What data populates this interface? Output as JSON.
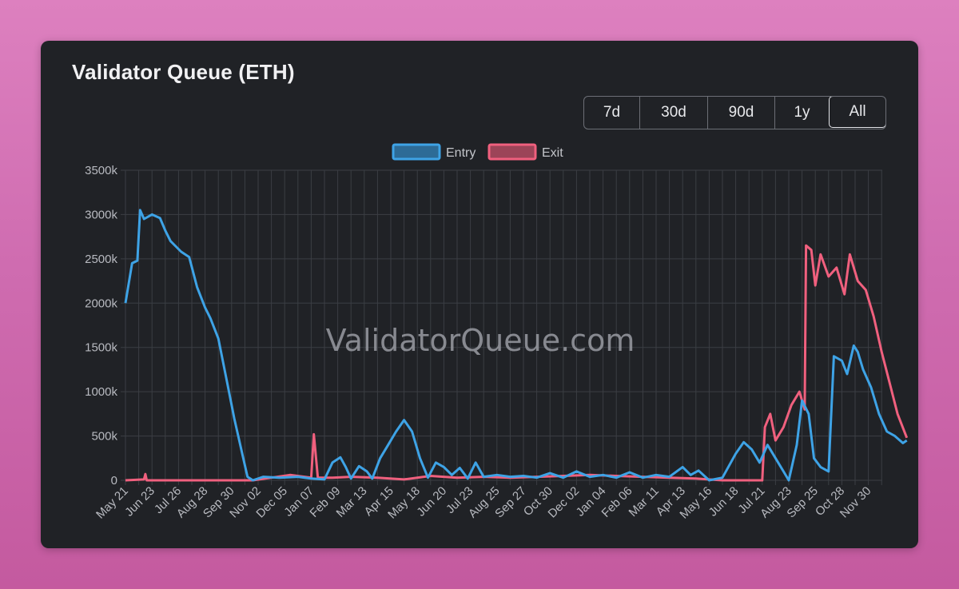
{
  "title": "Validator Queue (ETH)",
  "range_buttons": [
    {
      "label": "7d"
    },
    {
      "label": "30d"
    },
    {
      "label": "90d"
    },
    {
      "label": "1y"
    },
    {
      "label": "All",
      "active": true
    }
  ],
  "watermark": "ValidatorQueue.com",
  "colors": {
    "entry": "#3ea3e6",
    "exit": "#f0607e",
    "grid": "#3b3e44",
    "card": "#202226"
  },
  "chart_data": {
    "type": "line",
    "title": "",
    "xlabel": "",
    "ylabel": "",
    "ylim": [
      0,
      3500000
    ],
    "y_ticks": [
      "0",
      "500k",
      "1000k",
      "1500k",
      "2000k",
      "2500k",
      "3000k",
      "3500k"
    ],
    "x_ticks": [
      "May 21",
      "Jun 23",
      "Jul 26",
      "Aug 28",
      "Sep 30",
      "Nov 02",
      "Dec 05",
      "Jan 07",
      "Feb 09",
      "Mar 13",
      "Apr 15",
      "May 18",
      "Jun 20",
      "Jul 23",
      "Aug 25",
      "Sep 27",
      "Oct 30",
      "Dec 02",
      "Jan 04",
      "Feb 06",
      "Mar 11",
      "Apr 13",
      "May 16",
      "Jun 18",
      "Jul 21",
      "Aug 23",
      "Sep 25",
      "Oct 28",
      "Nov 30"
    ],
    "x_unit": "index of x tick label (ticks spaced ~33 days apart)",
    "grid": true,
    "legend_position": "top-center",
    "series": [
      {
        "name": "Entry",
        "color": "#3ea3e6",
        "points": [
          [
            0,
            2000000
          ],
          [
            0.25,
            2450000
          ],
          [
            0.45,
            2480000
          ],
          [
            0.55,
            3050000
          ],
          [
            0.7,
            2950000
          ],
          [
            1.0,
            3000000
          ],
          [
            1.3,
            2960000
          ],
          [
            1.5,
            2820000
          ],
          [
            1.7,
            2700000
          ],
          [
            2.1,
            2580000
          ],
          [
            2.4,
            2520000
          ],
          [
            2.7,
            2180000
          ],
          [
            3.0,
            1950000
          ],
          [
            3.2,
            1830000
          ],
          [
            3.5,
            1600000
          ],
          [
            3.8,
            1150000
          ],
          [
            4.1,
            700000
          ],
          [
            4.4,
            300000
          ],
          [
            4.6,
            40000
          ],
          [
            4.8,
            0
          ],
          [
            5.2,
            40000
          ],
          [
            5.8,
            30000
          ],
          [
            6.5,
            40000
          ],
          [
            7.0,
            20000
          ],
          [
            7.5,
            10000
          ],
          [
            7.8,
            200000
          ],
          [
            8.1,
            260000
          ],
          [
            8.3,
            150000
          ],
          [
            8.5,
            20000
          ],
          [
            8.8,
            160000
          ],
          [
            9.1,
            100000
          ],
          [
            9.3,
            20000
          ],
          [
            9.6,
            250000
          ],
          [
            9.9,
            400000
          ],
          [
            10.2,
            550000
          ],
          [
            10.5,
            680000
          ],
          [
            10.8,
            550000
          ],
          [
            11.1,
            250000
          ],
          [
            11.4,
            30000
          ],
          [
            11.7,
            200000
          ],
          [
            12.0,
            150000
          ],
          [
            12.3,
            60000
          ],
          [
            12.6,
            140000
          ],
          [
            12.9,
            20000
          ],
          [
            13.2,
            200000
          ],
          [
            13.5,
            40000
          ],
          [
            14.0,
            60000
          ],
          [
            14.5,
            40000
          ],
          [
            15.0,
            50000
          ],
          [
            15.5,
            30000
          ],
          [
            16.0,
            80000
          ],
          [
            16.5,
            30000
          ],
          [
            17.0,
            100000
          ],
          [
            17.5,
            40000
          ],
          [
            18.0,
            60000
          ],
          [
            18.5,
            30000
          ],
          [
            19.0,
            90000
          ],
          [
            19.5,
            30000
          ],
          [
            20.0,
            60000
          ],
          [
            20.5,
            40000
          ],
          [
            21.0,
            150000
          ],
          [
            21.3,
            60000
          ],
          [
            21.6,
            110000
          ],
          [
            22.0,
            0
          ],
          [
            22.5,
            30000
          ],
          [
            23.0,
            300000
          ],
          [
            23.3,
            430000
          ],
          [
            23.6,
            350000
          ],
          [
            23.9,
            200000
          ],
          [
            24.2,
            400000
          ],
          [
            24.5,
            250000
          ],
          [
            24.8,
            100000
          ],
          [
            25.0,
            0
          ],
          [
            25.3,
            400000
          ],
          [
            25.5,
            900000
          ],
          [
            25.75,
            750000
          ],
          [
            25.95,
            250000
          ],
          [
            26.2,
            150000
          ],
          [
            26.5,
            100000
          ],
          [
            26.7,
            1400000
          ],
          [
            27.0,
            1350000
          ],
          [
            27.2,
            1200000
          ],
          [
            27.45,
            1520000
          ],
          [
            27.6,
            1450000
          ],
          [
            27.8,
            1250000
          ],
          [
            28.1,
            1050000
          ],
          [
            28.4,
            750000
          ],
          [
            28.7,
            550000
          ],
          [
            29.0,
            500000
          ],
          [
            29.3,
            420000
          ],
          [
            29.45,
            450000
          ]
        ]
      },
      {
        "name": "Exit",
        "color": "#f0607e",
        "points": [
          [
            0,
            0
          ],
          [
            0.7,
            10000
          ],
          [
            0.75,
            70000
          ],
          [
            0.8,
            0
          ],
          [
            3.0,
            0
          ],
          [
            4.8,
            0
          ],
          [
            5.5,
            30000
          ],
          [
            6.2,
            60000
          ],
          [
            7.0,
            30000
          ],
          [
            7.1,
            520000
          ],
          [
            7.25,
            30000
          ],
          [
            7.8,
            30000
          ],
          [
            8.5,
            40000
          ],
          [
            9.5,
            30000
          ],
          [
            10.5,
            10000
          ],
          [
            11.5,
            50000
          ],
          [
            12.5,
            30000
          ],
          [
            13.5,
            40000
          ],
          [
            14.5,
            30000
          ],
          [
            15.5,
            40000
          ],
          [
            16.5,
            50000
          ],
          [
            17.5,
            60000
          ],
          [
            18.5,
            50000
          ],
          [
            19.5,
            40000
          ],
          [
            20.5,
            30000
          ],
          [
            21.5,
            20000
          ],
          [
            22.5,
            0
          ],
          [
            24.0,
            0
          ],
          [
            24.1,
            600000
          ],
          [
            24.3,
            750000
          ],
          [
            24.5,
            450000
          ],
          [
            24.8,
            600000
          ],
          [
            25.1,
            850000
          ],
          [
            25.4,
            1000000
          ],
          [
            25.6,
            800000
          ],
          [
            25.65,
            2650000
          ],
          [
            25.85,
            2600000
          ],
          [
            26.0,
            2200000
          ],
          [
            26.2,
            2550000
          ],
          [
            26.5,
            2300000
          ],
          [
            26.8,
            2400000
          ],
          [
            27.1,
            2100000
          ],
          [
            27.3,
            2550000
          ],
          [
            27.6,
            2250000
          ],
          [
            27.9,
            2150000
          ],
          [
            28.2,
            1850000
          ],
          [
            28.5,
            1450000
          ],
          [
            28.8,
            1100000
          ],
          [
            29.1,
            750000
          ],
          [
            29.45,
            480000
          ]
        ]
      }
    ]
  }
}
